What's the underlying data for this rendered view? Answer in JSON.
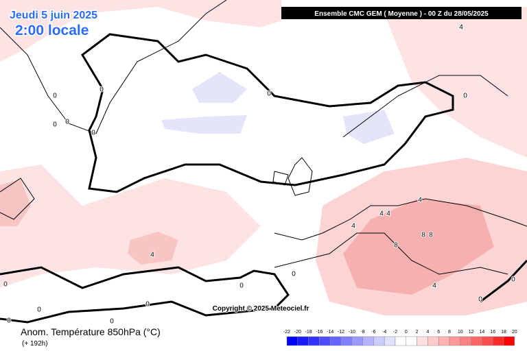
{
  "header": {
    "date": "Jeudi 5 juin 2025",
    "time": "2:00 locale",
    "model": "Ensemble CMC GEM  ( Moyenne )  -  00 Z du 28/05/2025"
  },
  "copyright": "Copyright © 2025 Meteociel.fr",
  "footer": {
    "title": "Anom. Température 850hPa (°C)",
    "lead": "(+ 192h)"
  },
  "contour_labels": [
    "4",
    "0",
    "0",
    "0",
    "0",
    "0",
    "0",
    "0",
    "4",
    "4",
    "4",
    "4",
    "8",
    "8",
    "8",
    "4",
    "0",
    "0",
    "0",
    "0",
    "0",
    "0",
    "0",
    "4",
    "0",
    "0"
  ],
  "legend": {
    "labels": [
      "-22",
      "-20",
      "-18",
      "-16",
      "-14",
      "-12",
      "-10",
      "-8",
      "-6",
      "-4",
      "-2",
      "0",
      "2",
      "4",
      "6",
      "8",
      "10",
      "12",
      "14",
      "16",
      "18",
      "20"
    ],
    "colors": [
      "#0000ff",
      "#1a1aff",
      "#3333ff",
      "#4d4dff",
      "#6666ff",
      "#8080ff",
      "#9999ff",
      "#b3b3ff",
      "#ccccff",
      "#e0e0ff",
      "#ffffff",
      "#ffffff",
      "#ffe0e0",
      "#ffcccc",
      "#ffb3b3",
      "#ff9999",
      "#ff8080",
      "#ff6666",
      "#ff4d4d",
      "#ff2a2a",
      "#ff0000"
    ]
  }
}
